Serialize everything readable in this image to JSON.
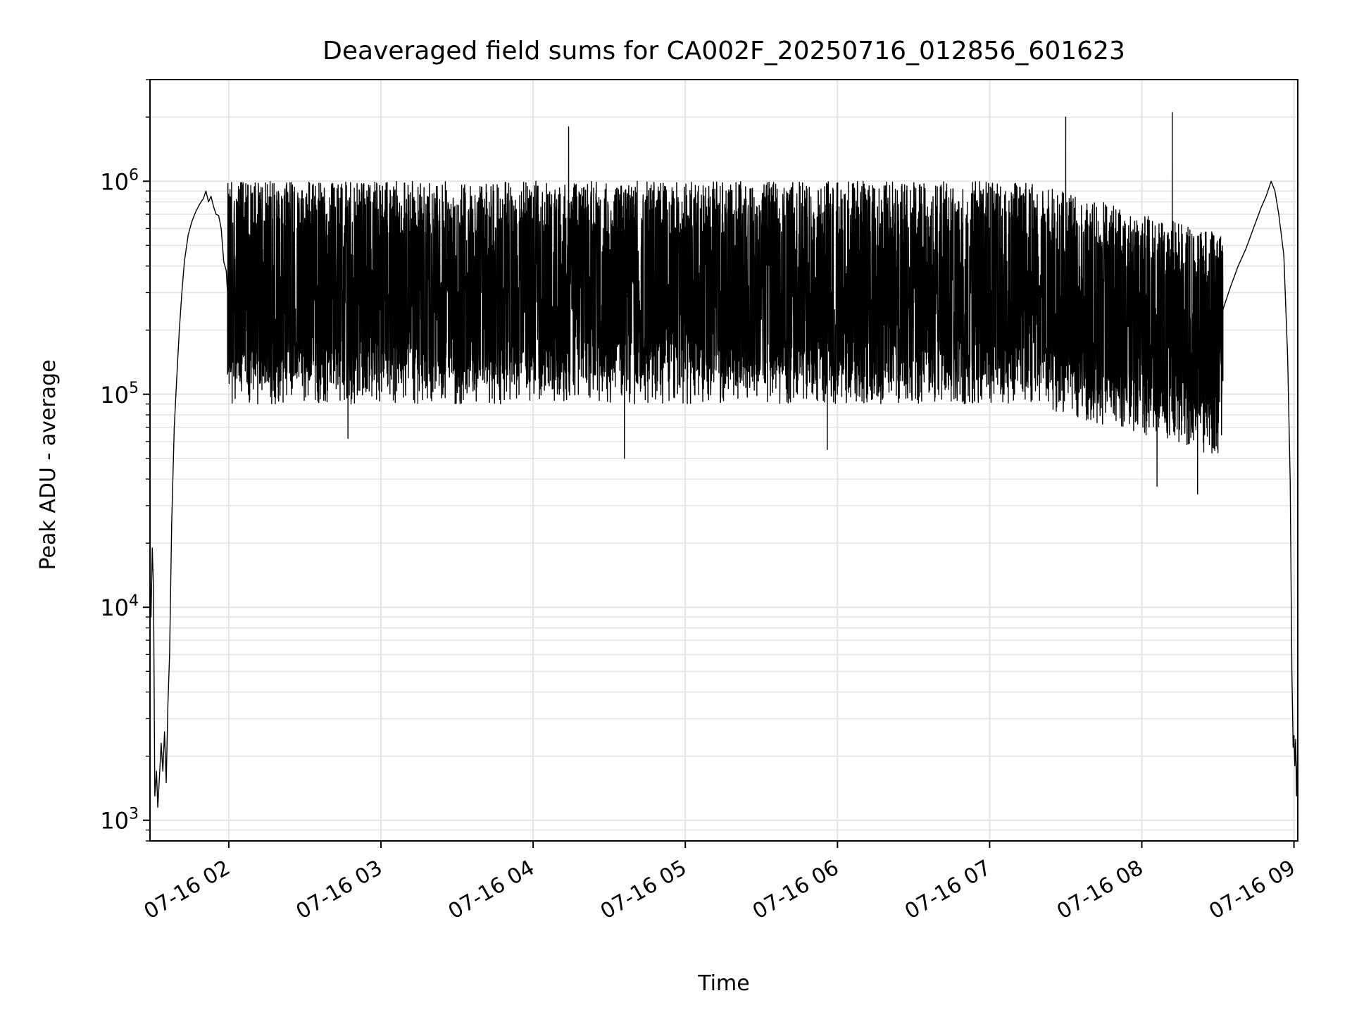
{
  "chart_data": {
    "type": "line",
    "title": "Deaveraged field sums for CA002F_20250716_012856_601623",
    "xlabel": "Time",
    "ylabel": "Peak ADU - average",
    "xscale": "time",
    "yscale": "log",
    "xlim": [
      "2025-07-16 01:28:56",
      "2025-07-16 09:01:30"
    ],
    "ylim": [
      800,
      3000000
    ],
    "x_ticks": [
      {
        "value": "2025-07-16 02:00",
        "label": "07-16 02"
      },
      {
        "value": "2025-07-16 03:00",
        "label": "07-16 03"
      },
      {
        "value": "2025-07-16 04:00",
        "label": "07-16 04"
      },
      {
        "value": "2025-07-16 05:00",
        "label": "07-16 05"
      },
      {
        "value": "2025-07-16 06:00",
        "label": "07-16 06"
      },
      {
        "value": "2025-07-16 07:00",
        "label": "07-16 07"
      },
      {
        "value": "2025-07-16 08:00",
        "label": "07-16 08"
      },
      {
        "value": "2025-07-16 09:00",
        "label": "07-16 09"
      }
    ],
    "y_ticks": [
      {
        "value": 1000,
        "base": "10",
        "exp": "3"
      },
      {
        "value": 10000,
        "base": "10",
        "exp": "4"
      },
      {
        "value": 100000,
        "base": "10",
        "exp": "5"
      },
      {
        "value": 1000000,
        "base": "10",
        "exp": "6"
      }
    ],
    "grid": {
      "major": true,
      "minor_y": true
    },
    "line_color": "#000000",
    "grid_color": "#e5e5e5",
    "series": [
      {
        "points": [
          [
            "2025-07-16 01:28:56",
            15000
          ],
          [
            "2025-07-16 01:29:20",
            9000
          ],
          [
            "2025-07-16 01:29:50",
            19000
          ],
          [
            "2025-07-16 01:30:20",
            12000
          ],
          [
            "2025-07-16 01:30:50",
            1300
          ],
          [
            "2025-07-16 01:31:30",
            1700
          ],
          [
            "2025-07-16 01:32:00",
            1150
          ],
          [
            "2025-07-16 01:32:40",
            1600
          ],
          [
            "2025-07-16 01:33:20",
            2300
          ],
          [
            "2025-07-16 01:34:00",
            1700
          ],
          [
            "2025-07-16 01:34:40",
            2600
          ],
          [
            "2025-07-16 01:35:20",
            1500
          ],
          [
            "2025-07-16 01:36:00",
            3500
          ],
          [
            "2025-07-16 01:36:40",
            6000
          ],
          [
            "2025-07-16 01:37:30",
            25000
          ],
          [
            "2025-07-16 01:38:30",
            70000
          ],
          [
            "2025-07-16 01:39:30",
            120000
          ],
          [
            "2025-07-16 01:40:30",
            200000
          ],
          [
            "2025-07-16 01:41:30",
            300000
          ],
          [
            "2025-07-16 01:42:30",
            420000
          ],
          [
            "2025-07-16 01:44:00",
            560000
          ],
          [
            "2025-07-16 01:45:30",
            650000
          ],
          [
            "2025-07-16 01:47:00",
            720000
          ],
          [
            "2025-07-16 01:48:30",
            780000
          ],
          [
            "2025-07-16 01:50:00",
            830000
          ],
          [
            "2025-07-16 01:51:00",
            900000
          ],
          [
            "2025-07-16 01:52:00",
            800000
          ],
          [
            "2025-07-16 01:53:00",
            850000
          ],
          [
            "2025-07-16 01:54:00",
            760000
          ],
          [
            "2025-07-16 01:55:00",
            700000
          ],
          [
            "2025-07-16 01:56:00",
            690000
          ],
          [
            "2025-07-16 01:57:00",
            600000
          ],
          [
            "2025-07-16 01:58:00",
            420000
          ],
          [
            "2025-07-16 01:59:00",
            380000
          ],
          [
            "2025-07-16 01:59:30",
            300000
          ]
        ],
        "noisy_segments": [
          {
            "start": "2025-07-16 01:59:30",
            "end": "2025-07-16 08:32:00",
            "baseline": 250000,
            "upper_env": 1000000,
            "lower_env": 90000
          }
        ],
        "tail": [
          [
            "2025-07-16 08:32:00",
            250000
          ],
          [
            "2025-07-16 08:35:00",
            320000
          ],
          [
            "2025-07-16 08:38:00",
            400000
          ],
          [
            "2025-07-16 08:41:00",
            480000
          ],
          [
            "2025-07-16 08:44:00",
            600000
          ],
          [
            "2025-07-16 08:47:00",
            750000
          ],
          [
            "2025-07-16 08:49:00",
            850000
          ],
          [
            "2025-07-16 08:51:00",
            1000000
          ],
          [
            "2025-07-16 08:52:30",
            900000
          ],
          [
            "2025-07-16 08:54:00",
            700000
          ],
          [
            "2025-07-16 08:56:00",
            450000
          ],
          [
            "2025-07-16 08:57:30",
            150000
          ],
          [
            "2025-07-16 08:58:30",
            40000
          ],
          [
            "2025-07-16 08:59:10",
            5000
          ],
          [
            "2025-07-16 08:59:40",
            2200
          ],
          [
            "2025-07-16 09:00:00",
            2500
          ],
          [
            "2025-07-16 09:00:20",
            1800
          ],
          [
            "2025-07-16 09:00:40",
            2400
          ],
          [
            "2025-07-16 09:01:00",
            1300
          ],
          [
            "2025-07-16 09:01:30",
            2300
          ]
        ],
        "spikes": [
          [
            "2025-07-16 04:14:00",
            1800000
          ],
          [
            "2025-07-16 07:30:00",
            2000000
          ],
          [
            "2025-07-16 08:12:00",
            2100000
          ],
          [
            "2025-07-16 02:47:00",
            62000
          ],
          [
            "2025-07-16 04:36:00",
            50000
          ],
          [
            "2025-07-16 05:56:00",
            55000
          ],
          [
            "2025-07-16 08:06:00",
            37000
          ],
          [
            "2025-07-16 08:22:00",
            34000
          ]
        ]
      }
    ]
  }
}
